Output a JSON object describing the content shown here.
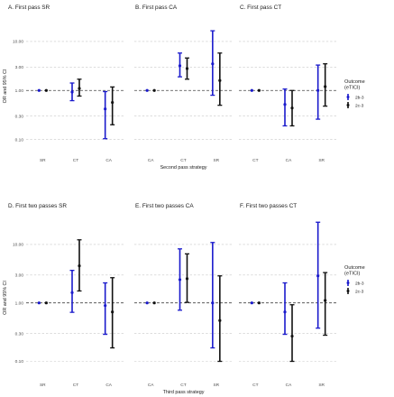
{
  "colors": {
    "s2b3": "#1a1acc",
    "s2c3": "#111111",
    "grid": "#c8c8c8",
    "ref": "#444444"
  },
  "chart_data": [
    {
      "type": "forest",
      "title": "A. First pass SR",
      "categories": [
        "SR",
        "CT",
        "CA"
      ],
      "xlabel": "",
      "ylabel": "OR and 95% CI",
      "yscale": "log",
      "ylim": [
        0.05,
        30
      ],
      "yticks": [
        0.1,
        0.3,
        1,
        3,
        10
      ],
      "ytick_labels": [
        "0.10",
        "0.30",
        "1.00",
        "3.00",
        "10.00"
      ],
      "series": [
        {
          "name": "2b-3",
          "values": [
            {
              "est": 1.0,
              "lo": 1.0,
              "hi": 1.0
            },
            {
              "est": 0.93,
              "lo": 0.62,
              "hi": 1.42
            },
            {
              "est": 0.42,
              "lo": 0.104,
              "hi": 0.95
            }
          ]
        },
        {
          "name": "2c-3",
          "values": [
            {
              "est": 1.0,
              "lo": 1.0,
              "hi": 1.0
            },
            {
              "est": 1.1,
              "lo": 0.77,
              "hi": 1.7
            },
            {
              "est": 0.57,
              "lo": 0.2,
              "hi": 1.18
            }
          ]
        }
      ]
    },
    {
      "type": "forest",
      "title": "B. First pass CA",
      "categories": [
        "CA",
        "CT",
        "SR"
      ],
      "xlabel": "Second pass strategy",
      "ylabel": "",
      "yscale": "log",
      "ylim": [
        0.05,
        30
      ],
      "yticks": [
        0.1,
        0.3,
        1,
        3,
        10
      ],
      "ytick_labels": [],
      "series": [
        {
          "name": "2b-3",
          "values": [
            {
              "est": 1.0,
              "lo": 1.0,
              "hi": 1.0
            },
            {
              "est": 3.2,
              "lo": 1.9,
              "hi": 5.8
            },
            {
              "est": 3.5,
              "lo": 0.8,
              "hi": 16.5
            }
          ]
        },
        {
          "name": "2c-3",
          "values": [
            {
              "est": 1.0,
              "lo": 1.0,
              "hi": 1.0
            },
            {
              "est": 2.8,
              "lo": 1.7,
              "hi": 4.6
            },
            {
              "est": 1.6,
              "lo": 0.5,
              "hi": 5.8
            }
          ]
        }
      ]
    },
    {
      "type": "forest",
      "title": "C. First pass CT",
      "categories": [
        "CT",
        "CA",
        "SR"
      ],
      "xlabel": "",
      "ylabel": "",
      "yscale": "log",
      "ylim": [
        0.05,
        30
      ],
      "yticks": [
        0.1,
        0.3,
        1,
        3,
        10
      ],
      "ytick_labels": [],
      "series": [
        {
          "name": "2b-3",
          "values": [
            {
              "est": 1.0,
              "lo": 1.0,
              "hi": 1.0
            },
            {
              "est": 0.52,
              "lo": 0.19,
              "hi": 1.07
            },
            {
              "est": 1.0,
              "lo": 0.26,
              "hi": 3.3
            }
          ]
        },
        {
          "name": "2c-3",
          "values": [
            {
              "est": 1.0,
              "lo": 1.0,
              "hi": 1.0
            },
            {
              "est": 0.44,
              "lo": 0.19,
              "hi": 1.0
            },
            {
              "est": 1.2,
              "lo": 0.48,
              "hi": 3.5
            }
          ]
        }
      ]
    },
    {
      "type": "forest",
      "title": "D. First two passes SR",
      "categories": [
        "SR",
        "CT",
        "CA"
      ],
      "xlabel": "",
      "ylabel": "OR and 95% CI",
      "yscale": "log",
      "ylim": [
        0.05,
        30
      ],
      "yticks": [
        0.1,
        0.3,
        1,
        3,
        10
      ],
      "ytick_labels": [
        "0.10",
        "0.30",
        "1.00",
        "3.00",
        "10.00"
      ],
      "series": [
        {
          "name": "2b-3",
          "values": [
            {
              "est": 1.0,
              "lo": 1.0,
              "hi": 1.0
            },
            {
              "est": 1.5,
              "lo": 0.69,
              "hi": 3.6
            },
            {
              "est": 0.9,
              "lo": 0.29,
              "hi": 2.2
            }
          ]
        },
        {
          "name": "2c-3",
          "values": [
            {
              "est": 1.0,
              "lo": 1.0,
              "hi": 1.0
            },
            {
              "est": 4.3,
              "lo": 1.6,
              "hi": 12.0
            },
            {
              "est": 0.7,
              "lo": 0.17,
              "hi": 2.7
            }
          ]
        }
      ]
    },
    {
      "type": "forest",
      "title": "E. First two passes CA",
      "categories": [
        "CA",
        "CT",
        "SR"
      ],
      "xlabel": "Third pass strategy",
      "ylabel": "",
      "yscale": "log",
      "ylim": [
        0.05,
        30
      ],
      "yticks": [
        0.1,
        0.3,
        1,
        3,
        10
      ],
      "ytick_labels": [],
      "series": [
        {
          "name": "2b-3",
          "values": [
            {
              "est": 1.0,
              "lo": 1.0,
              "hi": 1.0
            },
            {
              "est": 2.5,
              "lo": 0.75,
              "hi": 8.4
            },
            {
              "est": 1.0,
              "lo": 0.17,
              "hi": 10.8
            }
          ]
        },
        {
          "name": "2c-3",
          "values": [
            {
              "est": 1.0,
              "lo": 1.0,
              "hi": 1.0
            },
            {
              "est": 2.6,
              "lo": 1.02,
              "hi": 6.9
            },
            {
              "est": 0.5,
              "lo": 0.1,
              "hi": 2.9
            }
          ]
        }
      ]
    },
    {
      "type": "forest",
      "title": "F. First two passes CT",
      "categories": [
        "CT",
        "CA",
        "SR"
      ],
      "xlabel": "",
      "ylabel": "",
      "yscale": "log",
      "ylim": [
        0.05,
        30
      ],
      "yticks": [
        0.1,
        0.3,
        1,
        3,
        10
      ],
      "ytick_labels": [],
      "series": [
        {
          "name": "2b-3",
          "values": [
            {
              "est": 1.0,
              "lo": 1.0,
              "hi": 1.0
            },
            {
              "est": 0.7,
              "lo": 0.29,
              "hi": 2.2
            },
            {
              "est": 2.9,
              "lo": 0.37,
              "hi": 24.0
            }
          ]
        },
        {
          "name": "2c-3",
          "values": [
            {
              "est": 1.0,
              "lo": 1.0,
              "hi": 1.0
            },
            {
              "est": 0.27,
              "lo": 0.1,
              "hi": 0.93
            },
            {
              "est": 1.1,
              "lo": 0.28,
              "hi": 3.3
            }
          ]
        }
      ]
    }
  ],
  "legends": [
    {
      "title_lines": [
        "Outcome",
        "(eTICI)"
      ],
      "items": [
        {
          "label": "2b-3",
          "color_key": "s2b3"
        },
        {
          "label": "2c-3",
          "color_key": "s2c3"
        }
      ]
    },
    {
      "title_lines": [
        "Outcome",
        "(eTICI)"
      ],
      "items": [
        {
          "label": "2b-3",
          "color_key": "s2b3"
        },
        {
          "label": "2c-3",
          "color_key": "s2c3"
        }
      ]
    }
  ]
}
